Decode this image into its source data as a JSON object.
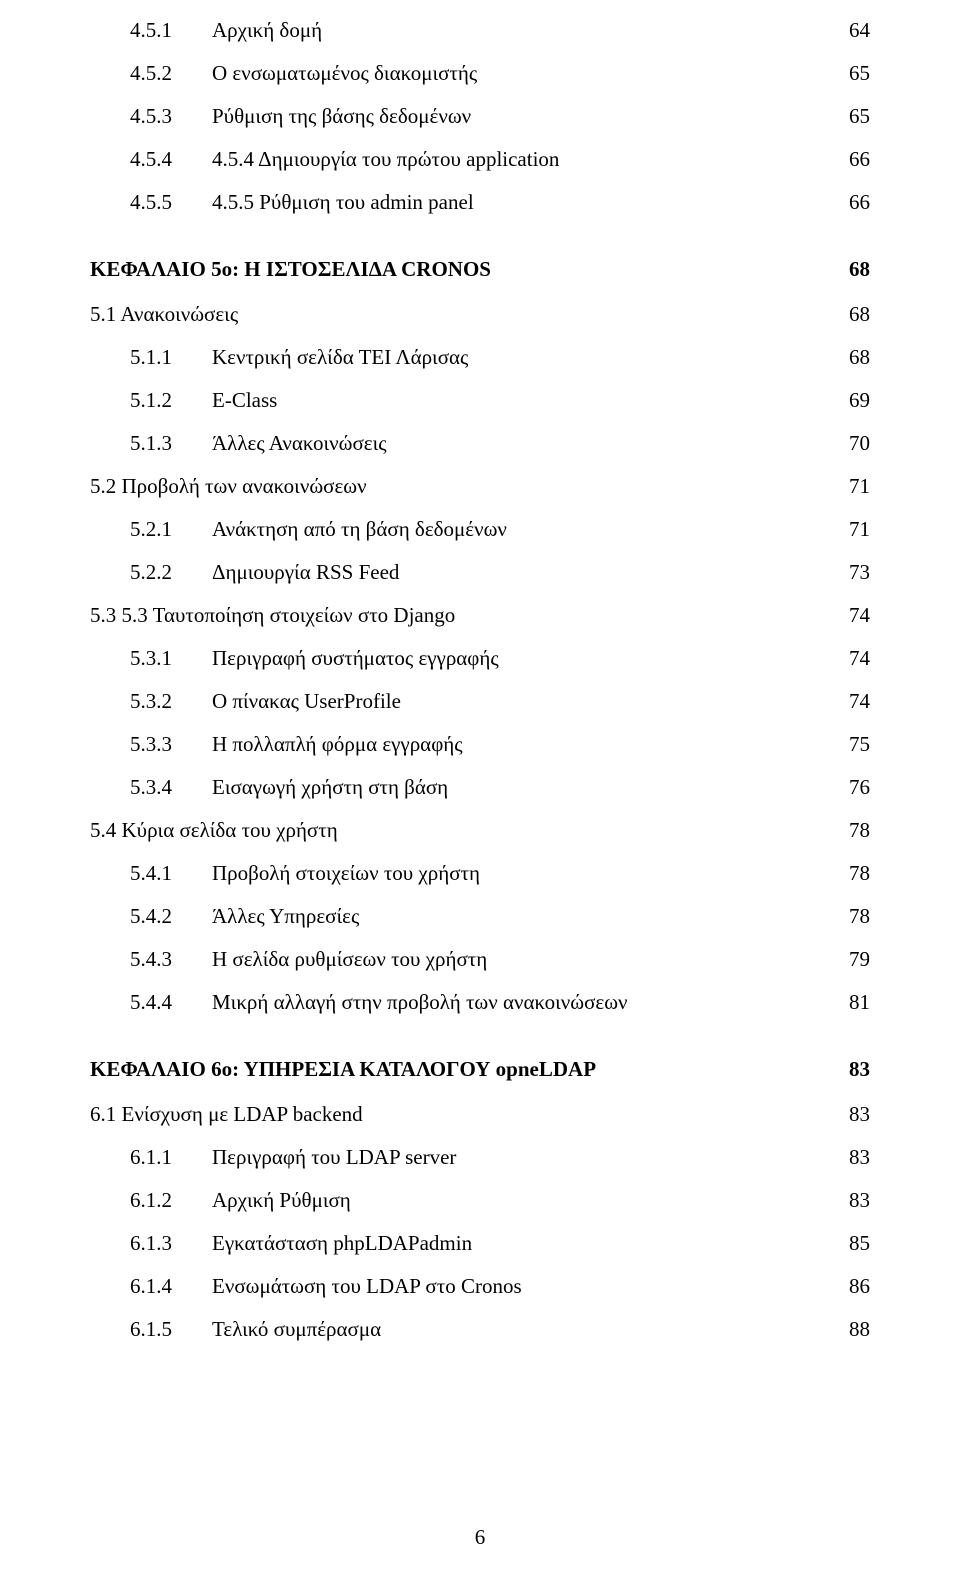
{
  "entries": [
    {
      "level": "lvl1",
      "num": "4.5.1",
      "title": "Αρχική δομή",
      "page": "64"
    },
    {
      "level": "lvl1",
      "num": "4.5.2",
      "title": "Ο ενσωματωμένος διακομιστής",
      "page": "65"
    },
    {
      "level": "lvl1",
      "num": "4.5.3",
      "title": "Ρύθμιση της βάσης δεδομένων",
      "page": "65"
    },
    {
      "level": "lvl1",
      "num": "4.5.4",
      "title": "4.5.4 Δημιουργία του πρώτου application",
      "page": "66"
    },
    {
      "level": "lvl1",
      "num": "4.5.5",
      "title": "4.5.5 Ρύθμιση του admin panel",
      "page": "66"
    }
  ],
  "chapter5": {
    "title": "ΚΕΦΑΛΑΙΟ 5ο: Η ΙΣΤΟΣΕΛΙΔΑ CRONOS",
    "page": "68"
  },
  "ch5entries": [
    {
      "level": "sec",
      "num": "",
      "title": "5.1 Ανακοινώσεις",
      "page": "68"
    },
    {
      "level": "lvl1",
      "num": "5.1.1",
      "title": "Κεντρική σελίδα ΤΕΙ Λάρισας",
      "page": "68"
    },
    {
      "level": "lvl1",
      "num": "5.1.2",
      "title": "E-Class",
      "page": "69"
    },
    {
      "level": "lvl1",
      "num": "5.1.3",
      "title": "Άλλες Ανακοινώσεις",
      "page": "70"
    },
    {
      "level": "sec",
      "num": "",
      "title": "5.2 Προβολή των ανακοινώσεων",
      "page": "71"
    },
    {
      "level": "lvl1",
      "num": "5.2.1",
      "title": "Ανάκτηση από τη βάση δεδομένων",
      "page": "71"
    },
    {
      "level": "lvl1",
      "num": "5.2.2",
      "title": "Δημιουργία RSS Feed",
      "page": "73"
    },
    {
      "level": "sec",
      "num": "",
      "title": "5.3 5.3 Ταυτοποίηση στοιχείων στο Django",
      "page": "74"
    },
    {
      "level": "lvl1",
      "num": "5.3.1",
      "title": "Περιγραφή συστήματος εγγραφής",
      "page": "74"
    },
    {
      "level": "lvl1",
      "num": "5.3.2",
      "title": "Ο πίνακας UserProfile",
      "page": "74"
    },
    {
      "level": "lvl1",
      "num": "5.3.3",
      "title": "Η πολλαπλή φόρμα εγγραφής",
      "page": "75"
    },
    {
      "level": "lvl1",
      "num": "5.3.4",
      "title": "Εισαγωγή χρήστη στη βάση",
      "page": "76"
    },
    {
      "level": "sec",
      "num": "",
      "title": "5.4 Κύρια σελίδα του χρήστη",
      "page": "78"
    },
    {
      "level": "lvl1",
      "num": "5.4.1",
      "title": "Προβολή στοιχείων του χρήστη",
      "page": "78"
    },
    {
      "level": "lvl1",
      "num": "5.4.2",
      "title": "Άλλες Υπηρεσίες",
      "page": "78"
    },
    {
      "level": "lvl1",
      "num": "5.4.3",
      "title": "H σελίδα ρυθμίσεων του χρήστη",
      "page": "79"
    },
    {
      "level": "lvl1",
      "num": "5.4.4",
      "title": "Μικρή αλλαγή στην προβολή των ανακοινώσεων",
      "page": "81"
    }
  ],
  "chapter6": {
    "title": "ΚΕΦΑΛΑΙΟ 6ο: ΥΠΗΡΕΣΙΑ ΚΑΤΑΛΟΓΟΥ opneLDAP",
    "page": "83"
  },
  "ch6entries": [
    {
      "level": "sec",
      "num": "",
      "title": "6.1 Ενίσχυση με LDAP backend",
      "page": "83"
    },
    {
      "level": "lvl1",
      "num": "6.1.1",
      "title": "Περιγραφή του LDAP server",
      "page": "83"
    },
    {
      "level": "lvl1",
      "num": "6.1.2",
      "title": "Αρχική Ρύθμιση",
      "page": "83"
    },
    {
      "level": "lvl1",
      "num": "6.1.3",
      "title": "Εγκατάσταση phpLDAPadmin",
      "page": "85"
    },
    {
      "level": "lvl1",
      "num": "6.1.4",
      "title": "Ενσωμάτωση του LDAP στο Cronos",
      "page": "86"
    },
    {
      "level": "lvl1",
      "num": "6.1.5",
      "title": "Τελικό συμπέρασμα",
      "page": "88"
    }
  ],
  "footerPage": "6"
}
